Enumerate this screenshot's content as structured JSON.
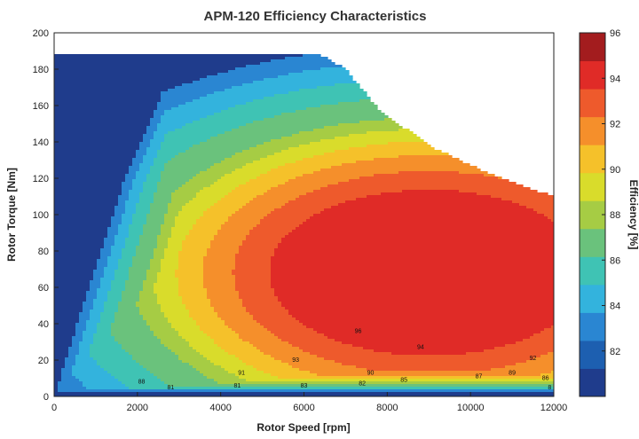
{
  "chart_data": {
    "type": "contour",
    "title": "APM-120 Efficiency Characteristics",
    "xlabel": "Rotor Speed [rpm]",
    "ylabel": "Rotor Torque [Nm]",
    "xlim": [
      0,
      12000
    ],
    "ylim": [
      0,
      200
    ],
    "xticks": [
      "0",
      "2000",
      "4000",
      "6000",
      "8000",
      "10000",
      "12000"
    ],
    "yticks": [
      "0",
      "20",
      "40",
      "60",
      "80",
      "100",
      "120",
      "140",
      "160",
      "180",
      "200"
    ],
    "colorbar": {
      "label": "Efficiency [%]",
      "range": [
        80,
        96
      ],
      "ticks": [
        "82",
        "84",
        "86",
        "88",
        "90",
        "92",
        "94",
        "96"
      ]
    },
    "max_torque_envelope": {
      "speed": [
        0,
        6400,
        7000,
        7800,
        9000,
        10500,
        12000
      ],
      "torque": [
        188,
        188,
        180,
        158,
        138,
        122,
        110
      ]
    },
    "low_efficiency_boundary": {
      "speed": [
        3000,
        1700,
        700,
        200,
        100
      ],
      "torque": [
        188,
        120,
        50,
        15,
        5
      ]
    },
    "efficiency_levels": [
      82,
      84,
      86,
      88,
      90,
      91,
      92,
      93,
      94,
      95,
      96
    ],
    "level_colors": [
      "#1f3c8c",
      "#1d5fb0",
      "#2a86d2",
      "#33b3dd",
      "#3fc3b4",
      "#6ac27c",
      "#a6cc44",
      "#d9dc2b",
      "#f5c12a",
      "#f58f2b",
      "#ee5a2c",
      "#e02b27",
      "#a31c1e"
    ],
    "contour_labels": [
      {
        "text": "96",
        "speed": 7300,
        "torque": 35
      },
      {
        "text": "94",
        "speed": 8800,
        "torque": 26
      },
      {
        "text": "93",
        "speed": 5800,
        "torque": 19
      },
      {
        "text": "92",
        "speed": 11500,
        "torque": 20
      },
      {
        "text": "91",
        "speed": 4500,
        "torque": 12
      },
      {
        "text": "90",
        "speed": 7600,
        "torque": 12
      },
      {
        "text": "89",
        "speed": 11000,
        "torque": 12
      },
      {
        "text": "88",
        "speed": 2100,
        "torque": 7
      },
      {
        "text": "87",
        "speed": 10200,
        "torque": 10
      },
      {
        "text": "86",
        "speed": 11800,
        "torque": 9
      },
      {
        "text": "85",
        "speed": 8400,
        "torque": 8
      },
      {
        "text": "83",
        "speed": 6000,
        "torque": 5
      },
      {
        "text": "82",
        "speed": 7400,
        "torque": 6
      },
      {
        "text": "81",
        "speed": 4400,
        "torque": 5
      },
      {
        "text": "81",
        "speed": 2800,
        "torque": 4
      },
      {
        "text": "8",
        "speed": 11900,
        "torque": 4
      }
    ]
  }
}
